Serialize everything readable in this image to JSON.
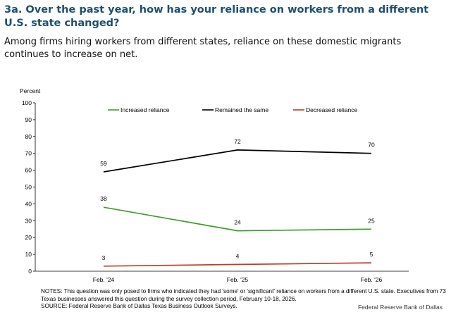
{
  "header": {
    "title": "3a. Over the past year, how has your reliance on workers from a different U.S. state changed?",
    "subtitle": "Among firms hiring workers from different states, reliance on these domestic migrants continues to increase on net."
  },
  "chart_data": {
    "type": "line",
    "ylabel": "Percent",
    "ylim": [
      0,
      100
    ],
    "yticks": [
      0,
      10,
      20,
      30,
      40,
      50,
      60,
      70,
      80,
      90,
      100
    ],
    "categories": [
      "Feb. '24",
      "Feb. '25",
      "Feb. '26"
    ],
    "series": [
      {
        "name": "Increased reliance",
        "values": [
          38,
          24,
          25
        ],
        "color": "#3f9a2f"
      },
      {
        "name": "Remained the same",
        "values": [
          59,
          72,
          70
        ],
        "color": "#000000"
      },
      {
        "name": "Decreased reliance",
        "values": [
          3,
          4,
          5
        ],
        "color": "#c0392b"
      }
    ],
    "legend_position": "top",
    "grid": false
  },
  "footer": {
    "notes": "NOTES: This question was only posed to firms who indicated they had 'some' or 'significant' reliance on workers from a different U.S. state. Executives from 73 Texas businesses answered this question during the survey collection period, February 10-18, 2026.",
    "source": "SOURCE: Federal Reserve Bank of Dallas Texas Business Outlook Surveys.",
    "credit": "Federal Reserve Bank of Dallas"
  }
}
